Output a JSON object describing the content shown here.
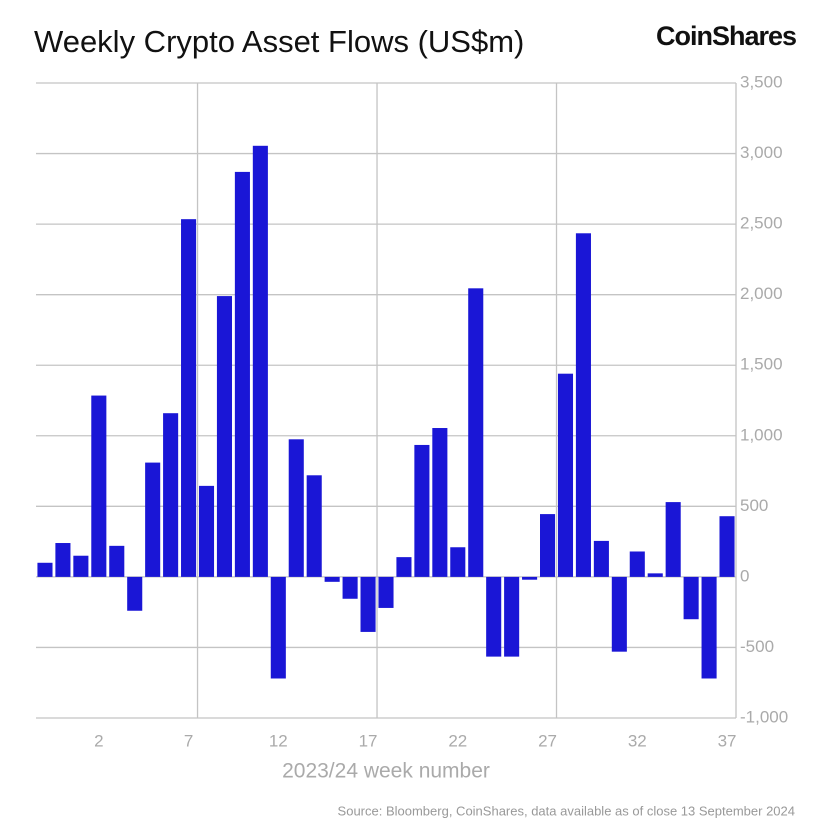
{
  "chart_data": {
    "type": "bar",
    "title": "Weekly Crypto Asset Flows (US$m)",
    "brand": "CoinShares",
    "x_label": "2023/24 week number",
    "source": "Source: Bloomberg, CoinShares, data available as of close 13 September 2024",
    "categories": [
      null,
      null,
      null,
      "2",
      null,
      null,
      null,
      null,
      "7",
      null,
      null,
      null,
      null,
      "12",
      null,
      null,
      null,
      null,
      "17",
      null,
      null,
      null,
      null,
      "22",
      null,
      null,
      null,
      null,
      "27",
      null,
      null,
      null,
      null,
      "32",
      null,
      null,
      null,
      null,
      "37"
    ],
    "values": [
      100,
      240,
      150,
      1285,
      220,
      -240,
      810,
      1160,
      2535,
      645,
      1990,
      2870,
      3055,
      -720,
      975,
      720,
      -35,
      -155,
      -390,
      -220,
      140,
      935,
      1055,
      210,
      2045,
      -565,
      -565,
      -20,
      445,
      1440,
      2435,
      255,
      -530,
      180,
      25,
      530,
      -300,
      -720,
      430
    ],
    "color": "#1a16d6",
    "ylim": [
      -1000,
      3500
    ],
    "yticks": [
      {
        "value": -1000,
        "label": "-1,000"
      },
      -500,
      0,
      500,
      {
        "value": 1000,
        "label": "1,000"
      },
      {
        "value": 1500,
        "label": "1,500"
      },
      {
        "value": 2000,
        "label": "2,000"
      },
      {
        "value": 2500,
        "label": "2,500"
      },
      {
        "value": 3000,
        "label": "3,000"
      },
      {
        "value": 3500,
        "label": "3,500"
      }
    ],
    "grid": true
  }
}
